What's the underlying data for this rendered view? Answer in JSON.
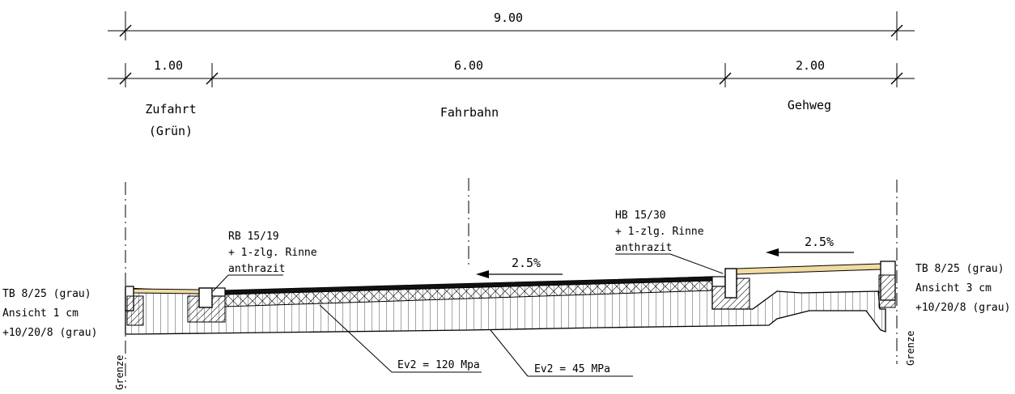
{
  "dimensions": {
    "total": "9.00",
    "segments": [
      "1.00",
      "6.00",
      "2.00"
    ]
  },
  "zones": {
    "zufahrt_line1": "Zufahrt",
    "zufahrt_line2": "(Grün)",
    "fahrbahn": "Fahrbahn",
    "gehweg": "Gehweg"
  },
  "slopes": {
    "road": "2.5%",
    "sidewalk": "2.5%"
  },
  "callouts": {
    "rb_line1": "RB 15/19",
    "rb_line2": "+ 1-zlg. Rinne",
    "rb_line3": "anthrazit",
    "hb_line1": "HB 15/30",
    "hb_line2": "+ 1-zlg. Rinne",
    "hb_line3": "anthrazit",
    "tb_left_line1": "TB 8/25 (grau)",
    "tb_left_line2": "Ansicht 1 cm",
    "tb_left_line3": "+10/20/8 (grau)",
    "tb_right_line1": "TB 8/25 (grau)",
    "tb_right_line2": "Ansicht 3 cm",
    "tb_right_line3": "+10/20/8 (grau)",
    "ev2_upper": "Ev2 =  120 Mpa",
    "ev2_lower": "Ev2 =  45 MPa"
  },
  "boundary": {
    "left": "Grenze",
    "right": "Grenze"
  },
  "colors": {
    "ink": "#000000",
    "paving": "#f0dca0",
    "asphalt": "#111111"
  }
}
